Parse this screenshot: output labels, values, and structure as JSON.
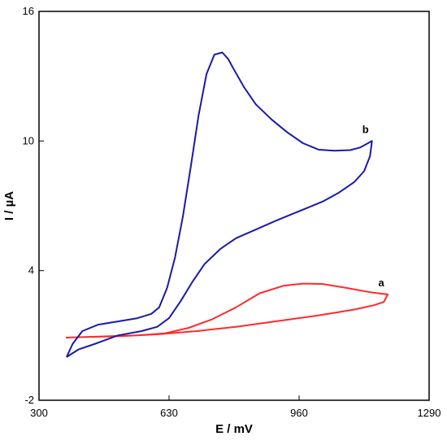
{
  "chart_data": {
    "type": "line",
    "title": "",
    "xlabel": "E / mV",
    "ylabel": "I / µA",
    "xlim": [
      300,
      1290
    ],
    "ylim": [
      -2,
      16
    ],
    "xticks": [
      "300",
      "630",
      "960",
      "1290"
    ],
    "yticks": [
      "-2",
      "4",
      "10",
      "16"
    ],
    "grid": false,
    "series": [
      {
        "name": "a",
        "color": "#ff2a2a",
        "points": [
          [
            368,
            0.9
          ],
          [
            450,
            0.95
          ],
          [
            550,
            1.0
          ],
          [
            620,
            1.1
          ],
          [
            680,
            1.35
          ],
          [
            740,
            1.75
          ],
          [
            800,
            2.3
          ],
          [
            860,
            2.95
          ],
          [
            920,
            3.3
          ],
          [
            970,
            3.4
          ],
          [
            1020,
            3.38
          ],
          [
            1080,
            3.2
          ],
          [
            1140,
            3.0
          ],
          [
            1185,
            2.9
          ],
          [
            1175,
            2.55
          ],
          [
            1150,
            2.4
          ],
          [
            1100,
            2.2
          ],
          [
            1050,
            2.05
          ],
          [
            1000,
            1.9
          ],
          [
            940,
            1.75
          ],
          [
            880,
            1.6
          ],
          [
            800,
            1.4
          ],
          [
            700,
            1.2
          ],
          [
            600,
            1.05
          ],
          [
            500,
            0.96
          ],
          [
            400,
            0.92
          ],
          [
            368,
            0.9
          ]
        ]
      },
      {
        "name": "b",
        "color": "#1a1aaa",
        "points": [
          [
            370,
            0.0
          ],
          [
            385,
            0.6
          ],
          [
            410,
            1.2
          ],
          [
            450,
            1.5
          ],
          [
            500,
            1.65
          ],
          [
            550,
            1.8
          ],
          [
            585,
            2.0
          ],
          [
            605,
            2.3
          ],
          [
            625,
            3.2
          ],
          [
            645,
            4.6
          ],
          [
            665,
            6.5
          ],
          [
            685,
            8.8
          ],
          [
            705,
            11.2
          ],
          [
            725,
            13.1
          ],
          [
            745,
            14.0
          ],
          [
            765,
            14.1
          ],
          [
            780,
            13.8
          ],
          [
            795,
            13.3
          ],
          [
            820,
            12.5
          ],
          [
            850,
            11.7
          ],
          [
            890,
            11.0
          ],
          [
            930,
            10.4
          ],
          [
            970,
            9.9
          ],
          [
            1010,
            9.6
          ],
          [
            1050,
            9.55
          ],
          [
            1090,
            9.58
          ],
          [
            1115,
            9.7
          ],
          [
            1135,
            9.9
          ],
          [
            1145,
            10.0
          ],
          [
            1140,
            9.3
          ],
          [
            1125,
            8.6
          ],
          [
            1100,
            8.1
          ],
          [
            1060,
            7.6
          ],
          [
            1020,
            7.2
          ],
          [
            980,
            6.9
          ],
          [
            940,
            6.6
          ],
          [
            900,
            6.3
          ],
          [
            850,
            5.9
          ],
          [
            800,
            5.5
          ],
          [
            760,
            5.0
          ],
          [
            720,
            4.3
          ],
          [
            690,
            3.5
          ],
          [
            660,
            2.6
          ],
          [
            630,
            1.8
          ],
          [
            600,
            1.4
          ],
          [
            560,
            1.2
          ],
          [
            500,
            1.0
          ],
          [
            440,
            0.6
          ],
          [
            400,
            0.35
          ],
          [
            370,
            0.0
          ]
        ]
      }
    ]
  }
}
